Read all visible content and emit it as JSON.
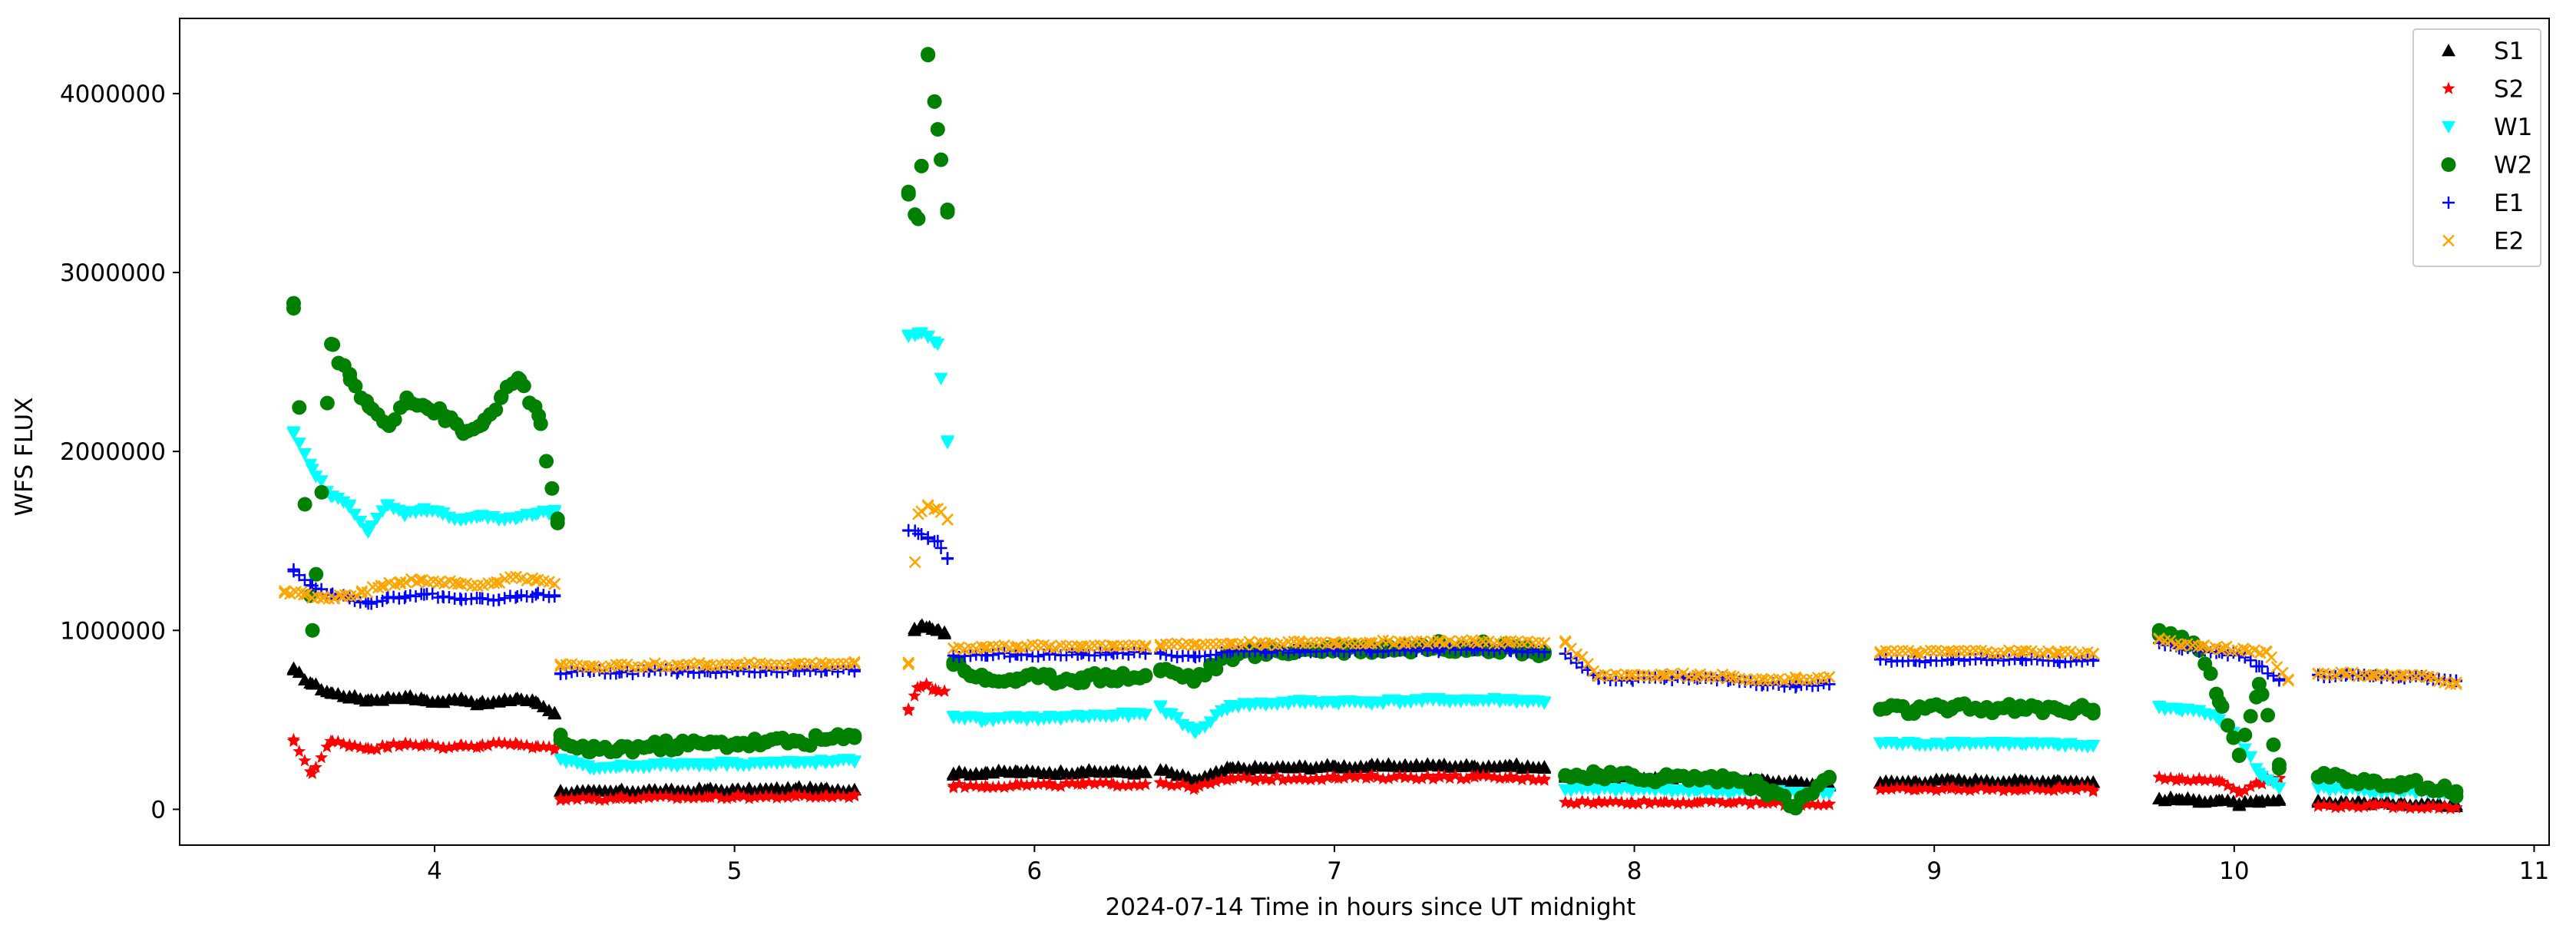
{
  "chart_data": {
    "type": "scatter",
    "title": "",
    "xlabel": "2024-07-14  Time in hours since UT midnight",
    "ylabel": "WFS FLUX",
    "xlim": [
      3.15,
      11.05
    ],
    "ylim": [
      -200000,
      4420000
    ],
    "xticks": [
      4,
      5,
      6,
      7,
      8,
      9,
      10,
      11
    ],
    "xtick_labels": [
      "4",
      "5",
      "6",
      "7",
      "8",
      "9",
      "10",
      "11"
    ],
    "yticks": [
      0,
      1000000,
      2000000,
      3000000,
      4000000
    ],
    "ytick_labels": [
      "0",
      "1000000",
      "2000000",
      "3000000",
      "4000000"
    ],
    "grid": false,
    "legend_position": "top-right",
    "series": [
      {
        "name": "S1",
        "marker": "triangle-up",
        "color": "#000000",
        "segments": [
          {
            "x0": 3.53,
            "x1": 4.4,
            "y": [
              780000,
              700000,
              650000,
              630000,
              610000,
              620000,
              630000,
              610000,
              600000,
              620000,
              590000,
              600000,
              620000,
              600000,
              540000
            ]
          },
          {
            "x0": 4.42,
            "x1": 5.4,
            "y": [
              100000,
              95000,
              100000,
              105000,
              100000,
              110000,
              105000,
              110000,
              115000,
              110000,
              110000
            ]
          },
          {
            "x0": 5.6,
            "x1": 5.7,
            "y": [
              1010000,
              1030000,
              1020000,
              1000000,
              990000
            ]
          },
          {
            "x0": 5.73,
            "x1": 6.37,
            "y": [
              200000,
              205000,
              210000,
              205000,
              210000,
              210000,
              205000
            ]
          },
          {
            "x0": 6.42,
            "x1": 7.7,
            "y": [
              220000,
              160000,
              230000,
              230000,
              235000,
              240000,
              240000,
              245000,
              245000,
              240000,
              245000,
              230000
            ]
          },
          {
            "x0": 7.77,
            "x1": 8.65,
            "y": [
              190000,
              180000,
              175000,
              175000,
              170000,
              170000,
              160000,
              150000,
              140000
            ]
          },
          {
            "x0": 8.82,
            "x1": 9.53,
            "y": [
              150000,
              155000,
              160000,
              160000,
              155000,
              160000,
              150000
            ]
          },
          {
            "x0": 9.75,
            "x1": 10.15,
            "y": [
              60000,
              55000,
              50000,
              50000,
              30000,
              40000,
              50000
            ]
          },
          {
            "x0": 10.28,
            "x1": 10.74,
            "y": [
              40000,
              40000,
              35000,
              35000,
              30000,
              25000
            ]
          }
        ]
      },
      {
        "name": "S2",
        "marker": "star",
        "color": "#ff0000",
        "segments": [
          {
            "x0": 3.53,
            "x1": 4.4,
            "y": [
              380000,
              200000,
              380000,
              360000,
              340000,
              350000,
              370000,
              360000,
              340000,
              360000,
              350000,
              370000,
              360000,
              350000,
              340000
            ]
          },
          {
            "x0": 4.42,
            "x1": 5.4,
            "y": [
              60000,
              60000,
              62000,
              65000,
              65000,
              68000,
              70000,
              70000,
              72000,
              72000,
              75000
            ]
          },
          {
            "x0": 5.58,
            "x1": 5.7,
            "y": [
              560000,
              680000,
              690000,
              670000,
              660000
            ]
          },
          {
            "x0": 5.73,
            "x1": 6.37,
            "y": [
              130000,
              130000,
              135000,
              135000,
              140000,
              140000,
              140000
            ]
          },
          {
            "x0": 6.42,
            "x1": 7.7,
            "y": [
              150000,
              120000,
              170000,
              170000,
              175000,
              175000,
              180000,
              180000,
              180000,
              180000,
              175000,
              170000
            ]
          },
          {
            "x0": 7.77,
            "x1": 8.65,
            "y": [
              40000,
              40000,
              40000,
              40000,
              40000,
              40000,
              35000,
              30000,
              30000
            ]
          },
          {
            "x0": 8.82,
            "x1": 9.53,
            "y": [
              110000,
              110000,
              115000,
              115000,
              110000,
              115000,
              110000
            ]
          },
          {
            "x0": 9.75,
            "x1": 10.15,
            "y": [
              180000,
              170000,
              165000,
              160000,
              100000,
              150000,
              170000
            ]
          },
          {
            "x0": 10.28,
            "x1": 10.74,
            "y": [
              20000,
              20000,
              20000,
              15000,
              15000,
              10000
            ]
          }
        ]
      },
      {
        "name": "W1",
        "marker": "triangle-down",
        "color": "#00ffff",
        "segments": [
          {
            "x0": 3.53,
            "x1": 4.4,
            "y": [
              2100000,
              1900000,
              1750000,
              1700000,
              1550000,
              1700000,
              1650000,
              1680000,
              1650000,
              1620000,
              1640000,
              1620000,
              1630000,
              1650000,
              1660000
            ]
          },
          {
            "x0": 4.42,
            "x1": 5.4,
            "y": [
              280000,
              230000,
              240000,
              245000,
              250000,
              255000,
              255000,
              260000,
              260000,
              265000,
              270000
            ]
          },
          {
            "x0": 5.58,
            "x1": 5.71,
            "y": [
              2650000,
              2660000,
              2640000,
              2600000,
              2050000
            ]
          },
          {
            "x0": 5.73,
            "x1": 6.37,
            "y": [
              520000,
              500000,
              510000,
              510000,
              520000,
              525000,
              530000
            ]
          },
          {
            "x0": 6.42,
            "x1": 7.7,
            "y": [
              570000,
              430000,
              580000,
              590000,
              600000,
              600000,
              600000,
              605000,
              610000,
              610000,
              610000,
              600000
            ]
          },
          {
            "x0": 7.77,
            "x1": 8.65,
            "y": [
              110000,
              110000,
              110000,
              110000,
              105000,
              100000,
              100000,
              95000,
              90000
            ]
          },
          {
            "x0": 8.82,
            "x1": 9.53,
            "y": [
              370000,
              365000,
              370000,
              370000,
              365000,
              360000,
              355000
            ]
          },
          {
            "x0": 9.75,
            "x1": 10.15,
            "y": [
              570000,
              560000,
              550000,
              500000,
              400000,
              200000,
              120000
            ]
          },
          {
            "x0": 10.28,
            "x1": 10.74,
            "y": [
              120000,
              110000,
              105000,
              100000,
              95000,
              90000
            ]
          }
        ]
      },
      {
        "name": "W2",
        "marker": "circle",
        "color": "#008000",
        "segments": [
          {
            "x0": 3.53,
            "x1": 4.41,
            "y": [
              2800000,
              1000000,
              2600000,
              2400000,
              2250000,
              2150000,
              2300000,
              2250000,
              2200000,
              2100000,
              2150000,
              2300000,
              2400000,
              2200000,
              1600000
            ]
          },
          {
            "x0": 4.42,
            "x1": 5.4,
            "y": [
              390000,
              320000,
              340000,
              350000,
              360000,
              365000,
              370000,
              375000,
              380000,
              390000,
              400000
            ]
          },
          {
            "x0": 5.58,
            "x1": 5.71,
            "y": [
              3450000,
              3300000,
              4220000,
              3800000,
              3350000
            ]
          },
          {
            "x0": 5.73,
            "x1": 6.37,
            "y": [
              820000,
              720000,
              730000,
              730000,
              735000,
              740000,
              745000
            ]
          },
          {
            "x0": 6.42,
            "x1": 7.7,
            "y": [
              780000,
              730000,
              860000,
              880000,
              890000,
              900000,
              900000,
              905000,
              910000,
              910000,
              905000,
              880000
            ]
          },
          {
            "x0": 7.77,
            "x1": 8.65,
            "y": [
              190000,
              180000,
              180000,
              178000,
              175000,
              170000,
              120000,
              20000,
              180000
            ]
          },
          {
            "x0": 8.82,
            "x1": 9.53,
            "y": [
              560000,
              555000,
              560000,
              565000,
              560000,
              560000,
              555000
            ]
          },
          {
            "x0": 9.75,
            "x1": 10.15,
            "y": [
              1000000,
              960000,
              900000,
              600000,
              300000,
              700000,
              250000
            ]
          },
          {
            "x0": 10.28,
            "x1": 10.74,
            "y": [
              180000,
              170000,
              160000,
              150000,
              120000,
              100000
            ]
          }
        ]
      },
      {
        "name": "E1",
        "marker": "plus",
        "color": "#0000ff",
        "segments": [
          {
            "x0": 3.53,
            "x1": 4.4,
            "y": [
              1330000,
              1250000,
              1200000,
              1180000,
              1150000,
              1180000,
              1190000,
              1200000,
              1190000,
              1170000,
              1180000,
              1170000,
              1190000,
              1200000,
              1190000
            ]
          },
          {
            "x0": 4.42,
            "x1": 5.4,
            "y": [
              760000,
              770000,
              765000,
              770000,
              770000,
              772000,
              775000,
              775000,
              775000,
              778000,
              780000
            ]
          },
          {
            "x0": 5.58,
            "x1": 5.71,
            "y": [
              1560000,
              1540000,
              1520000,
              1500000,
              1400000
            ]
          },
          {
            "x0": 5.73,
            "x1": 6.37,
            "y": [
              860000,
              860000,
              865000,
              865000,
              870000,
              870000,
              870000
            ]
          },
          {
            "x0": 6.42,
            "x1": 7.7,
            "y": [
              870000,
              850000,
              880000,
              880000,
              885000,
              885000,
              885000,
              888000,
              890000,
              890000,
              888000,
              880000
            ]
          },
          {
            "x0": 7.77,
            "x1": 8.65,
            "y": [
              870000,
              730000,
              730000,
              730000,
              730000,
              725000,
              700000,
              690000,
              700000
            ]
          },
          {
            "x0": 8.82,
            "x1": 9.53,
            "y": [
              840000,
              830000,
              835000,
              835000,
              835000,
              830000,
              830000
            ]
          },
          {
            "x0": 9.75,
            "x1": 10.15,
            "y": [
              930000,
              900000,
              890000,
              880000,
              860000,
              800000,
              720000
            ]
          },
          {
            "x0": 10.28,
            "x1": 10.74,
            "y": [
              750000,
              748000,
              745000,
              742000,
              735000,
              720000
            ]
          }
        ]
      },
      {
        "name": "E2",
        "marker": "x",
        "color": "#ffa500",
        "segments": [
          {
            "x0": 3.5,
            "x1": 4.4,
            "y": [
              1220000,
              1200000,
              1180000,
              1190000,
              1210000,
              1250000,
              1270000,
              1280000,
              1270000,
              1260000,
              1250000,
              1270000,
              1300000,
              1280000,
              1260000
            ]
          },
          {
            "x0": 4.42,
            "x1": 5.4,
            "y": [
              810000,
              800000,
              800000,
              805000,
              805000,
              808000,
              810000,
              810000,
              810000,
              812000,
              815000
            ]
          },
          {
            "x0": 5.58,
            "x1": 5.71,
            "y": [
              820000,
              1650000,
              1700000,
              1680000,
              1620000
            ]
          },
          {
            "x0": 5.73,
            "x1": 6.37,
            "y": [
              900000,
              905000,
              910000,
              910000,
              912000,
              915000,
              915000
            ]
          },
          {
            "x0": 6.42,
            "x1": 7.7,
            "y": [
              920000,
              920000,
              925000,
              928000,
              930000,
              930000,
              932000,
              935000,
              935000,
              935000,
              932000,
              930000
            ]
          },
          {
            "x0": 7.77,
            "x1": 8.65,
            "y": [
              940000,
              750000,
              750000,
              750000,
              748000,
              745000,
              720000,
              730000,
              740000
            ]
          },
          {
            "x0": 8.82,
            "x1": 9.53,
            "y": [
              880000,
              875000,
              880000,
              880000,
              878000,
              875000,
              870000
            ]
          },
          {
            "x0": 9.75,
            "x1": 10.18,
            "y": [
              950000,
              920000,
              910000,
              900000,
              890000,
              880000,
              720000
            ]
          },
          {
            "x0": 10.28,
            "x1": 10.74,
            "y": [
              760000,
              755000,
              750000,
              745000,
              740000,
              700000
            ]
          }
        ]
      }
    ]
  }
}
